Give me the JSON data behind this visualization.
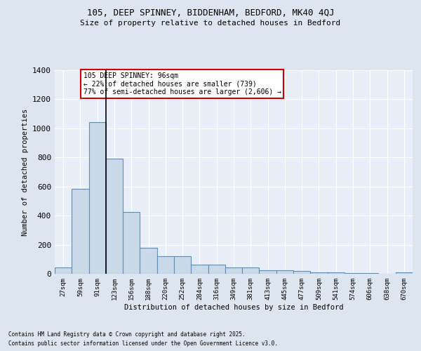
{
  "title1": "105, DEEP SPINNEY, BIDDENHAM, BEDFORD, MK40 4QJ",
  "title2": "Size of property relative to detached houses in Bedford",
  "xlabel": "Distribution of detached houses by size in Bedford",
  "ylabel": "Number of detached properties",
  "categories": [
    "27sqm",
    "59sqm",
    "91sqm",
    "123sqm",
    "156sqm",
    "188sqm",
    "220sqm",
    "252sqm",
    "284sqm",
    "316sqm",
    "349sqm",
    "381sqm",
    "413sqm",
    "445sqm",
    "477sqm",
    "509sqm",
    "541sqm",
    "574sqm",
    "606sqm",
    "638sqm",
    "670sqm"
  ],
  "values": [
    43,
    585,
    1045,
    790,
    425,
    178,
    120,
    120,
    65,
    65,
    43,
    43,
    25,
    25,
    18,
    12,
    10,
    5,
    3,
    2,
    10
  ],
  "bar_color": "#c9d9e8",
  "bar_edge_color": "#5b8db8",
  "vline_x": 2.5,
  "vline_color": "#000000",
  "annotation_text": "105 DEEP SPINNEY: 96sqm\n← 22% of detached houses are smaller (739)\n77% of semi-detached houses are larger (2,606) →",
  "annotation_box_color": "#ffffff",
  "annotation_box_edge": "#cc0000",
  "bg_color": "#dde5f0",
  "plot_bg_color": "#e8eef7",
  "grid_color": "#ffffff",
  "footer1": "Contains HM Land Registry data © Crown copyright and database right 2025.",
  "footer2": "Contains public sector information licensed under the Open Government Licence v3.0.",
  "ylim": [
    0,
    1400
  ],
  "yticks": [
    0,
    200,
    400,
    600,
    800,
    1000,
    1200,
    1400
  ]
}
